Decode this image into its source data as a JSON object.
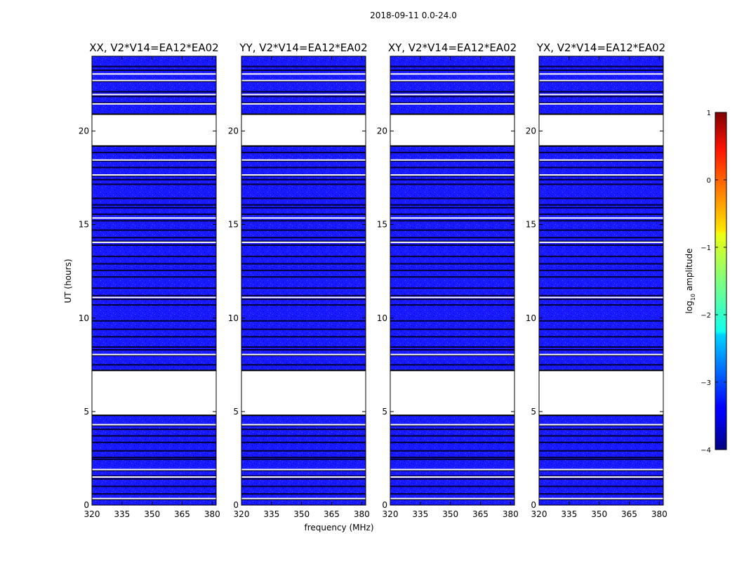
{
  "chart_data": {
    "type": "heatmap",
    "suptitle": "2018-09-11 0.0-24.0",
    "xlabel": "frequency (MHz)",
    "ylabel": "UT (hours)",
    "xlim": [
      320,
      382
    ],
    "ylim": [
      0,
      24
    ],
    "xticks": [
      "320",
      "335",
      "350",
      "365",
      "380"
    ],
    "yticks": [
      "0",
      "5",
      "10",
      "15",
      "20"
    ],
    "panels": [
      {
        "title": "XX, V2*V14=EA12*EA02"
      },
      {
        "title": "YY, V2*V14=EA12*EA02"
      },
      {
        "title": "XY, V2*V14=EA12*EA02"
      },
      {
        "title": "YX, V2*V14=EA12*EA02"
      }
    ],
    "data_blocks_ut_hours": [
      [
        0.0,
        4.8
      ],
      [
        7.2,
        19.2
      ],
      [
        20.9,
        24.0
      ]
    ],
    "blank_gaps_ut_hours": [
      [
        4.8,
        7.2
      ],
      [
        19.2,
        20.9
      ]
    ],
    "flag_lines_ut_hours": [
      0.3,
      0.6,
      1.0,
      1.4,
      1.55,
      1.85,
      2.45,
      2.55,
      2.9,
      3.35,
      3.7,
      4.05,
      4.25,
      7.5,
      8.0,
      8.3,
      8.45,
      9.0,
      9.4,
      9.85,
      10.7,
      11.0,
      11.2,
      11.6,
      12.2,
      12.55,
      12.9,
      13.3,
      13.9,
      14.1,
      14.3,
      14.7,
      15.2,
      15.55,
      15.9,
      16.05,
      16.4,
      17.15,
      17.4,
      17.6,
      18.05,
      18.4,
      18.85,
      21.5,
      21.85,
      22.1,
      22.65,
      23.25,
      23.45
    ],
    "white_gap_lines_ut_hours": [
      0.35,
      1.5,
      1.9,
      4.3,
      8.05,
      11.1,
      14.05,
      15.35,
      17.65,
      18.45,
      21.45,
      21.95,
      22.7,
      23.05
    ],
    "colorbar": {
      "label": "log10 amplitude",
      "min": -4,
      "max": 1,
      "ticks": [
        "−4",
        "−3",
        "−2",
        "−1",
        "0",
        "1"
      ],
      "colormap": "jet"
    },
    "colors": {
      "data_fill": "#1a1aff",
      "flag_line": "#000033",
      "gap": "#ffffff"
    }
  }
}
